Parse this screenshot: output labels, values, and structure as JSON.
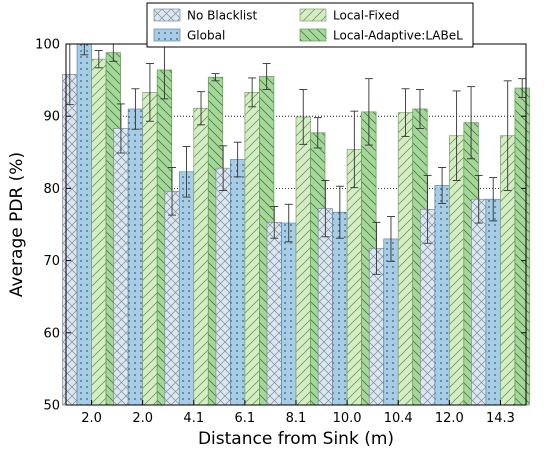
{
  "chart_data": {
    "type": "bar",
    "xlabel": "Distance from Sink (m)",
    "ylabel": "Average PDR (%)",
    "ylim": [
      50,
      100
    ],
    "yticks": [
      50,
      60,
      70,
      80,
      90,
      100
    ],
    "grid": "horizontal dotted",
    "legend_position": "top",
    "categories": [
      "2.0",
      "2.0",
      "4.1",
      "6.1",
      "8.1",
      "10.0",
      "10.4",
      "12.0",
      "14.3"
    ],
    "series": [
      {
        "name": "No Blacklist",
        "color": "#dbe7f0",
        "edge": "#7f8c99",
        "pattern": "crosshatch",
        "values": [
          95.8,
          88.3,
          79.6,
          82.8,
          75.3,
          77.2,
          71.7,
          77.1,
          78.5
        ],
        "err": [
          4.2,
          3.4,
          3.3,
          3.1,
          2.2,
          3.9,
          3.6,
          4.7,
          3.3
        ]
      },
      {
        "name": "Global",
        "color": "#a6cce6",
        "edge": "#5f86a8",
        "pattern": "dots",
        "values": [
          100,
          91.0,
          82.3,
          84.0,
          75.2,
          76.7,
          73.0,
          80.4,
          78.5
        ],
        "err": [
          1.5,
          2.8,
          3.5,
          2.4,
          2.6,
          3.6,
          3.1,
          2.5,
          3.0
        ]
      },
      {
        "name": "Local-Fixed",
        "color": "#d5edc5",
        "edge": "#7ea06a",
        "pattern": "diagonal-right",
        "values": [
          97.9,
          93.3,
          91.1,
          93.3,
          89.9,
          85.4,
          90.5,
          87.3,
          87.3
        ],
        "err": [
          1.2,
          4.0,
          2.3,
          2.0,
          3.8,
          5.3,
          3.3,
          6.2,
          7.6
        ]
      },
      {
        "name": "Local-Adaptive:LABeL",
        "color": "#a5d69a",
        "edge": "#5c9a52",
        "pattern": "diagonal-left",
        "values": [
          98.8,
          96.4,
          95.4,
          95.5,
          87.7,
          90.6,
          91.0,
          89.1,
          93.9
        ],
        "err": [
          1.2,
          4.0,
          0.5,
          1.8,
          2.1,
          4.6,
          2.7,
          5.0,
          1.3
        ]
      }
    ]
  }
}
